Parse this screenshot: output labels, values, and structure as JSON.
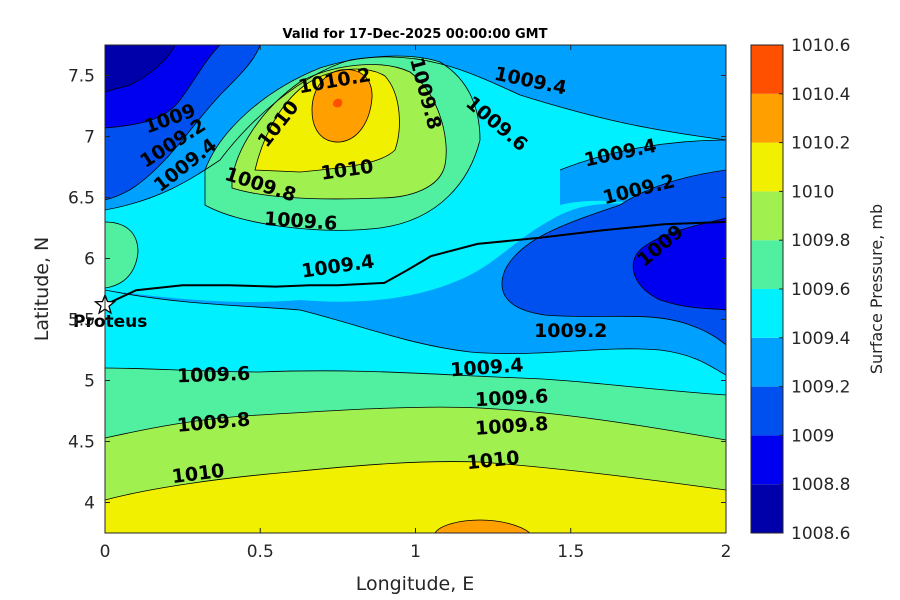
{
  "chart_data": {
    "type": "contour",
    "title": "Valid for 17-Dec-2025 00:00:00 GMT",
    "xlabel": "Longitude, E",
    "ylabel": "Latitude, N",
    "xlim": [
      0,
      2
    ],
    "ylim": [
      3.75,
      7.75
    ],
    "xticks": [
      "0",
      "0.5",
      "1",
      "1.5",
      "2"
    ],
    "yticks": [
      "4",
      "4.5",
      "5",
      "5.5",
      "6",
      "6.5",
      "7",
      "7.5"
    ],
    "colorbar": {
      "label": "Surface Pressure, mb",
      "levels": [
        "1008.6",
        "1008.8",
        "1009",
        "1009.2",
        "1009.4",
        "1009.6",
        "1009.8",
        "1010",
        "1010.2",
        "1010.4",
        "1010.6"
      ],
      "colors": [
        "#0000aa",
        "#0000f0",
        "#0050f0",
        "#00a0ff",
        "#00f0ff",
        "#50f0a0",
        "#a0f050",
        "#f0f000",
        "#ffa000",
        "#ff5000",
        "#ff0000"
      ]
    },
    "contour_labels": [
      {
        "text": "1010.2",
        "x": 0.74,
        "y": 7.45,
        "angle": -10
      },
      {
        "text": "1010",
        "x": 0.56,
        "y": 7.1,
        "angle": -52
      },
      {
        "text": "1010",
        "x": 0.78,
        "y": 6.72,
        "angle": -8
      },
      {
        "text": "1009.8",
        "x": 1.03,
        "y": 7.35,
        "angle": 75
      },
      {
        "text": "1009.8",
        "x": 0.5,
        "y": 6.6,
        "angle": 18
      },
      {
        "text": "1009.6",
        "x": 0.63,
        "y": 6.3,
        "angle": 4
      },
      {
        "text": "1009.4",
        "x": 1.37,
        "y": 7.45,
        "angle": 12
      },
      {
        "text": "1009.6",
        "x": 1.26,
        "y": 7.1,
        "angle": 40
      },
      {
        "text": "1009.4",
        "x": 1.66,
        "y": 6.86,
        "angle": -12
      },
      {
        "text": "1009.2",
        "x": 1.72,
        "y": 6.56,
        "angle": -14
      },
      {
        "text": "1009",
        "x": 1.79,
        "y": 6.1,
        "angle": -40
      },
      {
        "text": "1009",
        "x": 0.21,
        "y": 7.14,
        "angle": -20
      },
      {
        "text": "1009.2",
        "x": 0.22,
        "y": 6.94,
        "angle": -33
      },
      {
        "text": "1009.4",
        "x": 0.26,
        "y": 6.76,
        "angle": -38
      },
      {
        "text": "1009.4",
        "x": 0.75,
        "y": 5.93,
        "angle": -8
      },
      {
        "text": "1009.2",
        "x": 1.5,
        "y": 5.4,
        "angle": 0
      },
      {
        "text": "1009.4",
        "x": 1.23,
        "y": 5.1,
        "angle": -4
      },
      {
        "text": "1009.6",
        "x": 0.35,
        "y": 5.04,
        "angle": -2
      },
      {
        "text": "1009.6",
        "x": 1.31,
        "y": 4.85,
        "angle": -3
      },
      {
        "text": "1009.8",
        "x": 0.35,
        "y": 4.65,
        "angle": -5
      },
      {
        "text": "1009.8",
        "x": 1.31,
        "y": 4.62,
        "angle": -4
      },
      {
        "text": "1010",
        "x": 0.3,
        "y": 4.23,
        "angle": -7
      },
      {
        "text": "1010",
        "x": 1.25,
        "y": 4.34,
        "angle": -6
      }
    ],
    "track": [
      [
        0,
        5.62
      ],
      [
        0.1,
        5.74
      ],
      [
        0.25,
        5.78
      ],
      [
        0.4,
        5.78
      ],
      [
        0.55,
        5.77
      ],
      [
        0.66,
        5.78
      ],
      [
        0.75,
        5.78
      ],
      [
        0.9,
        5.8
      ],
      [
        0.97,
        5.9
      ],
      [
        1.05,
        6.02
      ],
      [
        1.2,
        6.12
      ],
      [
        1.4,
        6.17
      ],
      [
        1.6,
        6.23
      ],
      [
        1.8,
        6.28
      ],
      [
        2.0,
        6.3
      ]
    ],
    "marker": {
      "label": "Proteus",
      "x": 0,
      "y": 5.62
    }
  }
}
